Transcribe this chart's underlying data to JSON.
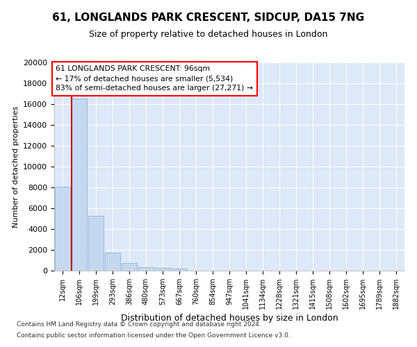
{
  "title1": "61, LONGLANDS PARK CRESCENT, SIDCUP, DA15 7NG",
  "title2": "Size of property relative to detached houses in London",
  "xlabel": "Distribution of detached houses by size in London",
  "ylabel": "Number of detached properties",
  "categories": [
    "12sqm",
    "106sqm",
    "199sqm",
    "293sqm",
    "386sqm",
    "480sqm",
    "573sqm",
    "667sqm",
    "760sqm",
    "854sqm",
    "947sqm",
    "1041sqm",
    "1134sqm",
    "1228sqm",
    "1321sqm",
    "1415sqm",
    "1508sqm",
    "1602sqm",
    "1695sqm",
    "1789sqm",
    "1882sqm"
  ],
  "values": [
    8100,
    16500,
    5300,
    1750,
    750,
    350,
    270,
    230,
    0,
    0,
    0,
    0,
    0,
    0,
    0,
    0,
    0,
    0,
    0,
    0,
    0
  ],
  "bar_color": "#c5d8f0",
  "bar_edge_color": "#7badd4",
  "marker_color": "#cc0000",
  "annotation_title": "61 LONGLANDS PARK CRESCENT: 96sqm",
  "annotation_line1": "← 17% of detached houses are smaller (5,534)",
  "annotation_line2": "83% of semi-detached houses are larger (27,271) →",
  "footer1": "Contains HM Land Registry data © Crown copyright and database right 2024.",
  "footer2": "Contains public sector information licensed under the Open Government Licence v3.0.",
  "ylim_max": 20000,
  "yticks": [
    0,
    2000,
    4000,
    6000,
    8000,
    10000,
    12000,
    14000,
    16000,
    18000,
    20000
  ],
  "bg_color": "#dde8f8",
  "fig_bg": "#ffffff",
  "title1_fontsize": 11,
  "title2_fontsize": 9,
  "ylabel_fontsize": 8,
  "xlabel_fontsize": 9,
  "tick_fontsize": 8,
  "xtick_fontsize": 7
}
